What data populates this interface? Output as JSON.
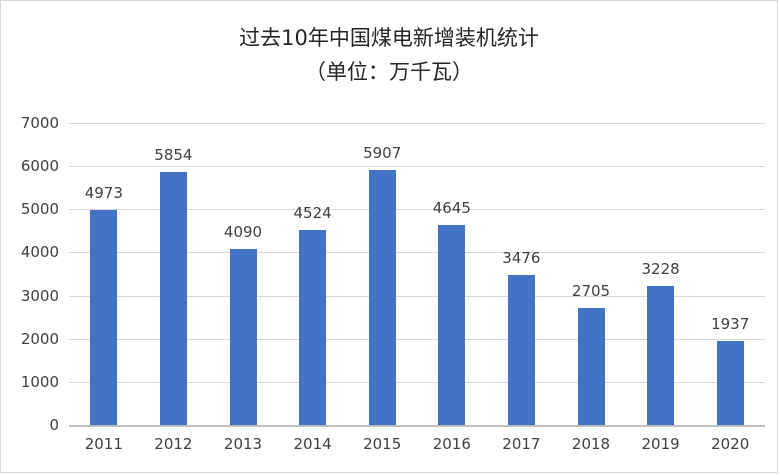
{
  "title": "过去10年中国煤电新增装机统计",
  "subtitle": "（单位：万千瓦）",
  "chart_data": {
    "type": "bar",
    "title": "过去10年中国煤电新增装机统计",
    "subtitle": "（单位：万千瓦）",
    "categories": [
      "2011",
      "2012",
      "2013",
      "2014",
      "2015",
      "2016",
      "2017",
      "2018",
      "2019",
      "2020"
    ],
    "values": [
      4973,
      5854,
      4090,
      4524,
      5907,
      4645,
      3476,
      2705,
      3228,
      1937
    ],
    "xlabel": "",
    "ylabel": "",
    "ylim": [
      0,
      7000
    ],
    "ytick_step": 1000,
    "grid": true,
    "legend": false,
    "bar_color": "#4472C4",
    "grid_color": "#D9D9D9",
    "axis_color": "#BFBFBF",
    "text_color": "#404040"
  }
}
